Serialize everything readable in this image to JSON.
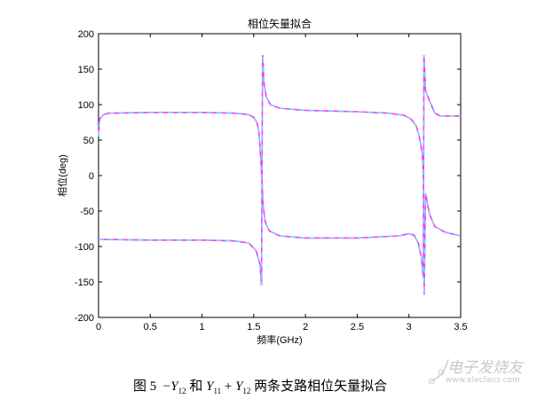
{
  "chart_data": {
    "type": "line",
    "title": "相位矢量拟合",
    "xlabel": "频率(GHz)",
    "ylabel": "相位(deg)",
    "xlim": [
      0,
      3.5
    ],
    "ylim": [
      -200,
      200
    ],
    "xticks": [
      "0",
      "0.5",
      "1",
      "1.5",
      "2",
      "2.5",
      "3",
      "3.5"
    ],
    "yticks": [
      "200",
      "150",
      "100",
      "50",
      "0",
      "-50",
      "-100",
      "-150",
      "-200"
    ],
    "grid": false,
    "colors": {
      "measured": "#ff33ff",
      "fitted": "#66ddee"
    },
    "series": [
      {
        "x": [
          0,
          0.01,
          0.05,
          0.1,
          0.5,
          1.0,
          1.3,
          1.45,
          1.5,
          1.53,
          1.55,
          1.565,
          1.578,
          1.59,
          1.61,
          1.65,
          1.75,
          2.0,
          2.5,
          2.9,
          3.0,
          3.05,
          3.09,
          3.12,
          3.14,
          3.145,
          3.16,
          3.2,
          3.25,
          3.3,
          3.5
        ],
        "y": [
          55,
          80,
          86,
          88,
          89,
          89,
          88,
          86,
          82,
          75,
          62,
          30,
          0,
          -40,
          -65,
          -78,
          -85,
          -88,
          -88,
          -85,
          -82,
          -84,
          -95,
          -115,
          -145,
          170,
          120,
          105,
          88,
          84,
          84
        ]
      },
      {
        "x": [
          0,
          0.5,
          1.0,
          1.3,
          1.45,
          1.52,
          1.56,
          1.575,
          1.585,
          1.6,
          1.62,
          1.66,
          1.75,
          2.0,
          2.5,
          2.8,
          2.95,
          3.02,
          3.07,
          3.1,
          3.13,
          3.14,
          3.147,
          3.16,
          3.2,
          3.25,
          3.35,
          3.5
        ],
        "y": [
          -90,
          -91,
          -91,
          -92,
          -95,
          -105,
          -125,
          -155,
          170,
          130,
          112,
          100,
          95,
          92,
          90,
          88,
          85,
          80,
          70,
          55,
          30,
          0,
          -168,
          -25,
          -55,
          -72,
          -80,
          -85
        ]
      }
    ]
  },
  "caption": {
    "prefix": "图 5",
    "minus": "−",
    "Y": "Y",
    "sub12": "12",
    "and": "和",
    "sub11": "11",
    "plus": "+",
    "rest": "两条支路相位矢量拟合"
  },
  "watermark": {
    "name": "电子发烧友",
    "url": "www.elecfans.com"
  }
}
